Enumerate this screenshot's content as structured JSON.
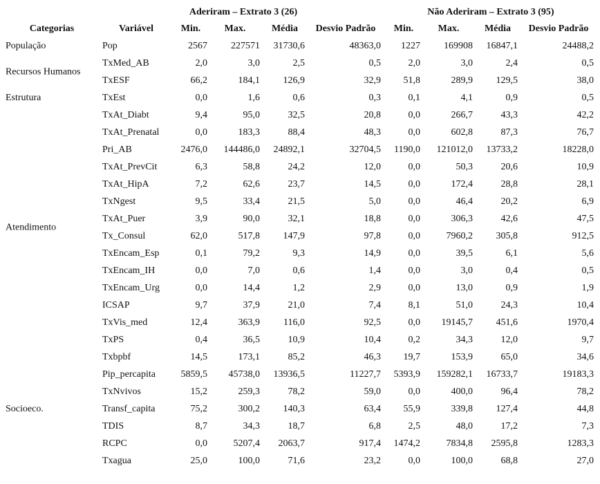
{
  "header": {
    "groups": [
      "Aderiram – Extrato 3 (26)",
      "Não Aderiram – Extrato 3 (95)"
    ],
    "columns": [
      "Categorias",
      "Variável",
      "Min.",
      "Max.",
      "Média",
      "Desvio Padrão",
      "Min.",
      "Max.",
      "Média",
      "Desvio Padrão"
    ]
  },
  "groups": [
    {
      "category": "População",
      "rows": [
        {
          "variable": "Pop",
          "values": [
            "2567",
            "227571",
            "31730,6",
            "48363,0",
            "1227",
            "169908",
            "16847,1",
            "24488,2"
          ]
        }
      ]
    },
    {
      "category": "Recursos Humanos",
      "rows": [
        {
          "variable": "TxMed_AB",
          "values": [
            "2,0",
            "3,0",
            "2,5",
            "0,5",
            "2,0",
            "3,0",
            "2,4",
            "0,5"
          ]
        },
        {
          "variable": "TxESF",
          "values": [
            "66,2",
            "184,1",
            "126,9",
            "32,9",
            "51,8",
            "289,9",
            "129,5",
            "38,0"
          ]
        }
      ]
    },
    {
      "category": "Estrutura",
      "rows": [
        {
          "variable": "TxEst",
          "values": [
            "0,0",
            "1,6",
            "0,6",
            "0,3",
            "0,1",
            "4,1",
            "0,9",
            "0,5"
          ]
        }
      ]
    },
    {
      "category": "Atendimento",
      "rows": [
        {
          "variable": "TxAt_Diabt",
          "values": [
            "9,4",
            "95,0",
            "32,5",
            "20,8",
            "0,0",
            "266,7",
            "43,3",
            "42,2"
          ]
        },
        {
          "variable": "TxAt_Prenatal",
          "values": [
            "0,0",
            "183,3",
            "88,4",
            "48,3",
            "0,0",
            "602,8",
            "87,3",
            "76,7"
          ]
        },
        {
          "variable": "Pri_AB",
          "values": [
            "2476,0",
            "144486,0",
            "24892,1",
            "32704,5",
            "1190,0",
            "121012,0",
            "13733,2",
            "18228,0"
          ]
        },
        {
          "variable": "TxAt_PrevCit",
          "values": [
            "6,3",
            "58,8",
            "24,2",
            "12,0",
            "0,0",
            "50,3",
            "20,6",
            "10,9"
          ]
        },
        {
          "variable": "TxAt_HipA",
          "values": [
            "7,2",
            "62,6",
            "23,7",
            "14,5",
            "0,0",
            "172,4",
            "28,8",
            "28,1"
          ]
        },
        {
          "variable": "TxNgest",
          "values": [
            "9,5",
            "33,4",
            "21,5",
            "5,0",
            "0,0",
            "46,4",
            "20,2",
            "6,9"
          ]
        },
        {
          "variable": "TxAt_Puer",
          "values": [
            "3,9",
            "90,0",
            "32,1",
            "18,8",
            "0,0",
            "306,3",
            "42,6",
            "47,5"
          ]
        },
        {
          "variable": "Tx_Consul",
          "values": [
            "62,0",
            "517,8",
            "147,9",
            "97,8",
            "0,0",
            "7960,2",
            "305,8",
            "912,5"
          ]
        },
        {
          "variable": "TxEncam_Esp",
          "values": [
            "0,1",
            "79,2",
            "9,3",
            "14,9",
            "0,0",
            "39,5",
            "6,1",
            "5,6"
          ]
        },
        {
          "variable": "TxEncam_IH",
          "values": [
            "0,0",
            "7,0",
            "0,6",
            "1,4",
            "0,0",
            "3,0",
            "0,4",
            "0,5"
          ]
        },
        {
          "variable": "TxEncam_Urg",
          "values": [
            "0,0",
            "14,4",
            "1,2",
            "2,9",
            "0,0",
            "13,0",
            "0,9",
            "1,9"
          ]
        },
        {
          "variable": "ICSAP",
          "values": [
            "9,7",
            "37,9",
            "21,0",
            "7,4",
            "8,1",
            "51,0",
            "24,3",
            "10,4"
          ]
        },
        {
          "variable": "TxVis_med",
          "values": [
            "12,4",
            "363,9",
            "116,0",
            "92,5",
            "0,0",
            "19145,7",
            "451,6",
            "1970,4"
          ]
        },
        {
          "variable": "TxPS",
          "values": [
            "0,4",
            "36,5",
            "10,9",
            "10,4",
            "0,2",
            "34,3",
            "12,0",
            "9,7"
          ]
        }
      ]
    },
    {
      "category": "Socioeco.",
      "rows": [
        {
          "variable": "Txbpbf",
          "values": [
            "14,5",
            "173,1",
            "85,2",
            "46,3",
            "19,7",
            "153,9",
            "65,0",
            "34,6"
          ]
        },
        {
          "variable": "Pip_percapita",
          "values": [
            "5859,5",
            "45738,0",
            "13936,5",
            "11227,7",
            "5393,9",
            "159282,1",
            "16733,7",
            "19183,3"
          ]
        },
        {
          "variable": "TxNvivos",
          "values": [
            "15,2",
            "259,3",
            "78,2",
            "59,0",
            "0,0",
            "400,0",
            "96,4",
            "78,2"
          ]
        },
        {
          "variable": "Transf_capita",
          "values": [
            "75,2",
            "300,2",
            "140,3",
            "63,4",
            "55,9",
            "339,8",
            "127,4",
            "44,8"
          ]
        },
        {
          "variable": "TDIS",
          "values": [
            "8,7",
            "34,3",
            "18,7",
            "6,8",
            "2,5",
            "48,0",
            "17,2",
            "7,3"
          ]
        },
        {
          "variable": "RCPC",
          "values": [
            "0,0",
            "5207,4",
            "2063,7",
            "917,4",
            "1474,2",
            "7834,8",
            "2595,8",
            "1283,3"
          ]
        },
        {
          "variable": "Txagua",
          "values": [
            "25,0",
            "100,0",
            "71,6",
            "23,2",
            "0,0",
            "100,0",
            "68,8",
            "27,0"
          ]
        }
      ]
    }
  ]
}
